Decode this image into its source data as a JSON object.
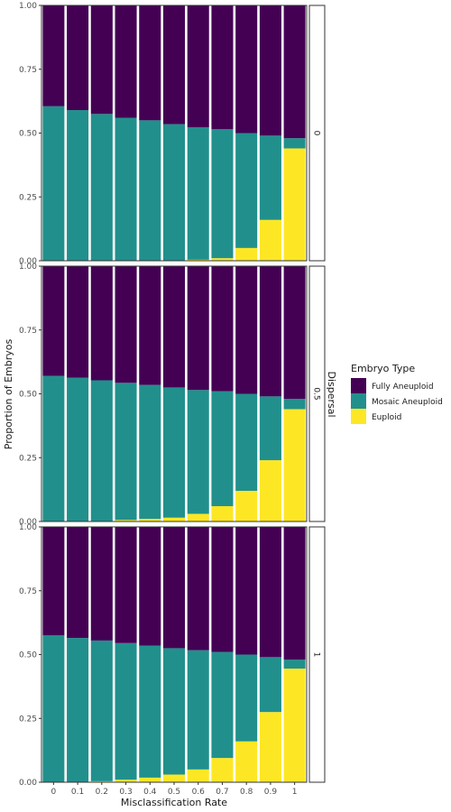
{
  "chart_data": {
    "type": "bar",
    "stacked": true,
    "xlabel": "Misclassification Rate",
    "ylabel": "Proportion of Embryos",
    "facet_label": "Dispersal",
    "categories": [
      "0",
      "0.1",
      "0.2",
      "0.3",
      "0.4",
      "0.5",
      "0.6",
      "0.7",
      "0.8",
      "0.9",
      "1"
    ],
    "yticks": [
      "0.00",
      "0.25",
      "0.50",
      "0.75",
      "1.00"
    ],
    "ylim": [
      0,
      1
    ],
    "legend": {
      "title": "Embryo Type",
      "position": "right",
      "entries": [
        {
          "name": "Fully Aneuploid",
          "color": "#440154"
        },
        {
          "name": "Mosaic Aneuploid",
          "color": "#21908C"
        },
        {
          "name": "Euploid",
          "color": "#FDE725"
        }
      ]
    },
    "panels": [
      {
        "label": "0",
        "euploid": [
          0.0,
          0.0,
          0.0,
          0.0,
          0.0,
          0.0,
          0.004,
          0.01,
          0.05,
          0.16,
          0.44
        ],
        "mosaic": [
          0.605,
          0.59,
          0.575,
          0.56,
          0.55,
          0.535,
          0.519,
          0.505,
          0.45,
          0.33,
          0.04
        ],
        "fully": [
          0.395,
          0.41,
          0.425,
          0.44,
          0.45,
          0.465,
          0.477,
          0.485,
          0.5,
          0.51,
          0.52
        ]
      },
      {
        "label": "0.5",
        "euploid": [
          0.0,
          0.0,
          0.0,
          0.006,
          0.01,
          0.015,
          0.03,
          0.06,
          0.12,
          0.24,
          0.44
        ],
        "mosaic": [
          0.57,
          0.563,
          0.553,
          0.537,
          0.525,
          0.51,
          0.485,
          0.45,
          0.38,
          0.25,
          0.04
        ],
        "fully": [
          0.43,
          0.437,
          0.447,
          0.457,
          0.465,
          0.475,
          0.485,
          0.49,
          0.5,
          0.51,
          0.52
        ]
      },
      {
        "label": "1",
        "euploid": [
          0.0,
          0.0,
          0.004,
          0.01,
          0.018,
          0.03,
          0.05,
          0.095,
          0.16,
          0.275,
          0.445
        ],
        "mosaic": [
          0.575,
          0.565,
          0.551,
          0.535,
          0.517,
          0.495,
          0.467,
          0.415,
          0.34,
          0.215,
          0.035
        ],
        "fully": [
          0.425,
          0.435,
          0.445,
          0.455,
          0.465,
          0.475,
          0.483,
          0.49,
          0.5,
          0.51,
          0.52
        ]
      }
    ]
  }
}
